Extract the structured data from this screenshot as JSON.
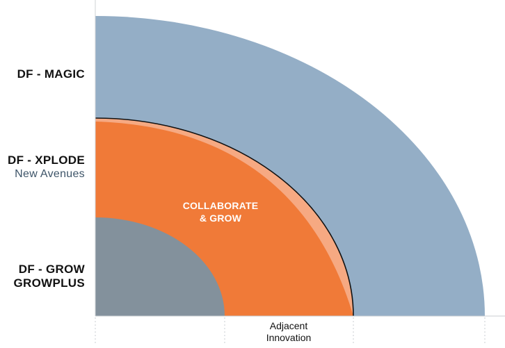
{
  "levels": [
    {
      "title": "DF - MAGIC",
      "subtitle": "",
      "color": "#94aec6"
    },
    {
      "title": "DF - XPLODE",
      "subtitle": "New Avenues",
      "color": "#f07a38"
    },
    {
      "title": "DF - GROW",
      "subtitle": "GROWPLUS",
      "color": "#83919c"
    }
  ],
  "highlight_color": "#f6a982",
  "center_text": {
    "line1": "COLLABORATE",
    "line2": "& GROW"
  },
  "axis_label": {
    "line1": "Adjacent",
    "line2": "Innovation"
  }
}
